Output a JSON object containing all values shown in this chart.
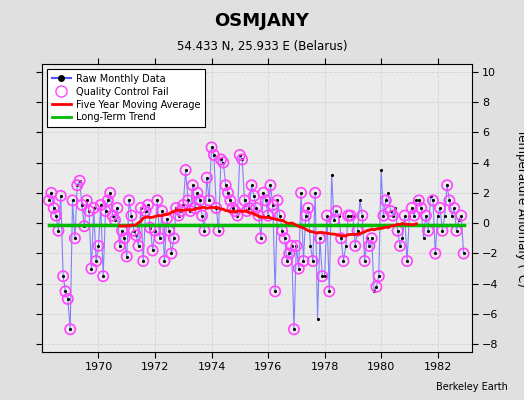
{
  "title": "OSMJANY",
  "subtitle": "54.433 N, 25.933 E (Belarus)",
  "ylabel": "Temperature Anomaly (°C)",
  "credit": "Berkeley Earth",
  "xlim": [
    1968.0,
    1983.2
  ],
  "ylim": [
    -8.5,
    10.5
  ],
  "yticks": [
    -8,
    -6,
    -4,
    -2,
    0,
    2,
    4,
    6,
    8,
    10
  ],
  "xticks": [
    1970,
    1972,
    1974,
    1976,
    1978,
    1980,
    1982
  ],
  "bg_color": "#e0e0e0",
  "plot_bg_color": "#ebebeb",
  "raw_color": "#5555ff",
  "raw_alpha": 0.7,
  "dot_color": "#000000",
  "qc_color": "#ff44ff",
  "moving_avg_color": "#ff0000",
  "trend_color": "#00bb00",
  "trend_intercept": -0.1,
  "trend_slope": 0.0
}
